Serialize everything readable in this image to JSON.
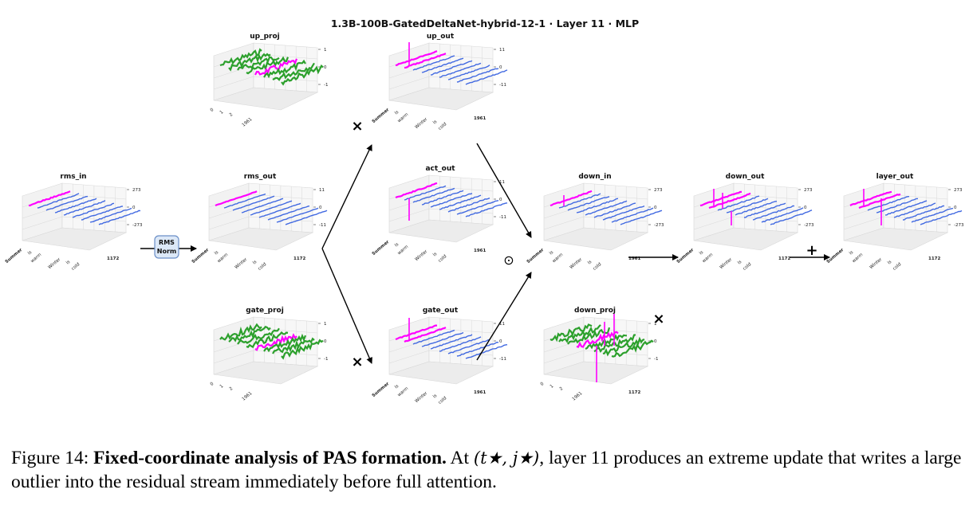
{
  "figure": {
    "title": "1.3B-100B-GatedDeltaNet-hybrid-12-1 · Layer 11 · MLP",
    "norm_box": {
      "line1": "RMS",
      "line2": "Norm"
    },
    "operators": {
      "times": "×",
      "hadamard": "⊙",
      "plus": "+"
    },
    "colors": {
      "base": "#4169e1",
      "highlight": "#ff00ff",
      "weight": "#2ca02c",
      "grid": "#d8d8d8",
      "pane": "#f2f2f2"
    },
    "panels": [
      {
        "id": "up_proj",
        "title": "up_proj",
        "kind": "weight",
        "zticks": [
          "1",
          "0",
          "-1"
        ],
        "xticks": [
          "0",
          "1",
          "2",
          "",
          "1961",
          "",
          ""
        ],
        "yticks": []
      },
      {
        "id": "up_out",
        "title": "up_out",
        "kind": "activation",
        "zticks": [
          "11",
          "0",
          "-11"
        ],
        "xticks": [
          "Summer",
          "is",
          "warm",
          "",
          "Winter",
          "is",
          "cold"
        ],
        "yticks": [
          "1961"
        ]
      },
      {
        "id": "rms_in",
        "title": "rms_in",
        "kind": "activation",
        "zticks": [
          "273",
          "0",
          "-273"
        ],
        "xticks": [
          "Summer",
          "is",
          "warm",
          "",
          "Winter",
          "is",
          "cold"
        ],
        "yticks": [
          "1172"
        ]
      },
      {
        "id": "rms_out",
        "title": "rms_out",
        "kind": "activation",
        "zticks": [
          "11",
          "0",
          "-11"
        ],
        "xticks": [
          "Summer",
          "is",
          "warm",
          "",
          "Winter",
          "is",
          "cold"
        ],
        "yticks": [
          "1172"
        ]
      },
      {
        "id": "act_out",
        "title": "act_out",
        "kind": "activation",
        "zticks": [
          "11",
          "0",
          "-11"
        ],
        "xticks": [
          "Summer",
          "is",
          "warm",
          "",
          "Winter",
          "is",
          "cold"
        ],
        "yticks": [
          "1961"
        ]
      },
      {
        "id": "down_in",
        "title": "down_in",
        "kind": "activation",
        "zticks": [
          "273",
          "0",
          "-273"
        ],
        "xticks": [
          "Summer",
          "is",
          "warm",
          "",
          "Winter",
          "is",
          "cold"
        ],
        "yticks": [
          "1961"
        ]
      },
      {
        "id": "down_out",
        "title": "down_out",
        "kind": "activation",
        "zticks": [
          "273",
          "0",
          "-273"
        ],
        "xticks": [
          "Summer",
          "is",
          "warm",
          "",
          "Winter",
          "is",
          "cold"
        ],
        "yticks": [
          "1172"
        ]
      },
      {
        "id": "layer_out",
        "title": "layer_out",
        "kind": "activation",
        "zticks": [
          "273",
          "0",
          "-273"
        ],
        "xticks": [
          "Summer",
          "is",
          "warm",
          "",
          "Winter",
          "is",
          "cold"
        ],
        "yticks": [
          "1172"
        ]
      },
      {
        "id": "gate_proj",
        "title": "gate_proj",
        "kind": "weight",
        "zticks": [
          "1",
          "0",
          "-1"
        ],
        "xticks": [
          "0",
          "1",
          "2",
          "",
          "1961",
          "",
          ""
        ],
        "yticks": []
      },
      {
        "id": "gate_out",
        "title": "gate_out",
        "kind": "activation",
        "zticks": [
          "11",
          "0",
          "-11"
        ],
        "xticks": [
          "Summer",
          "is",
          "warm",
          "",
          "Winter",
          "is",
          "cold"
        ],
        "yticks": [
          "1961"
        ]
      },
      {
        "id": "down_proj",
        "title": "down_proj",
        "kind": "weight",
        "zticks": [
          "1",
          "0",
          "-1"
        ],
        "xticks": [
          "0",
          "1",
          "2",
          "",
          "1961",
          "",
          ""
        ],
        "yticks": [
          "1172"
        ]
      }
    ]
  },
  "caption": {
    "label": "Figure 14:",
    "bold": "Fixed-coordinate analysis of PAS formation.",
    "text1": "At",
    "math": "(t★, j★)",
    "text2": ", layer 11 produces an extreme update that writes a large outlier into the residual stream immediately before full attention."
  }
}
